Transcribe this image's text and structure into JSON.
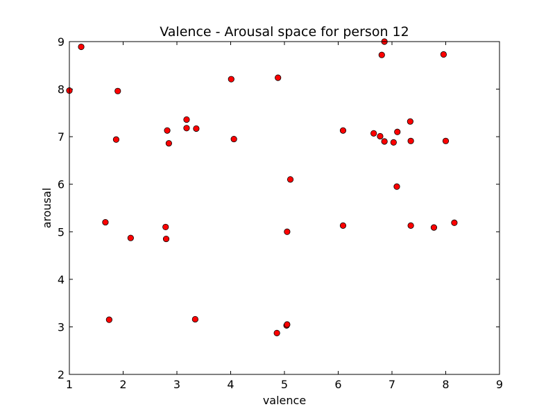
{
  "chart_data": {
    "type": "scatter",
    "title": "Valence - Arousal space for person 12",
    "xlabel": "valence",
    "ylabel": "arousal",
    "xlim": [
      1,
      9
    ],
    "ylim": [
      2,
      9
    ],
    "xticks": [
      "1",
      "2",
      "3",
      "4",
      "5",
      "6",
      "7",
      "8",
      "9"
    ],
    "yticks": [
      "2",
      "3",
      "4",
      "5",
      "6",
      "7",
      "8",
      "9"
    ],
    "grid": false,
    "marker_color": "#ff0000",
    "marker_edge_color": "#000000",
    "points": [
      {
        "x": 1.0,
        "y": 7.97
      },
      {
        "x": 1.22,
        "y": 8.89
      },
      {
        "x": 1.67,
        "y": 5.2
      },
      {
        "x": 1.74,
        "y": 3.15
      },
      {
        "x": 1.87,
        "y": 6.94
      },
      {
        "x": 1.9,
        "y": 7.96
      },
      {
        "x": 2.14,
        "y": 4.87
      },
      {
        "x": 2.79,
        "y": 5.1
      },
      {
        "x": 2.8,
        "y": 4.85
      },
      {
        "x": 2.82,
        "y": 7.13
      },
      {
        "x": 2.85,
        "y": 6.86
      },
      {
        "x": 3.18,
        "y": 7.36
      },
      {
        "x": 3.18,
        "y": 7.18
      },
      {
        "x": 3.34,
        "y": 3.16
      },
      {
        "x": 3.36,
        "y": 7.17
      },
      {
        "x": 4.01,
        "y": 8.21
      },
      {
        "x": 4.06,
        "y": 6.95
      },
      {
        "x": 4.86,
        "y": 2.87
      },
      {
        "x": 4.88,
        "y": 8.24
      },
      {
        "x": 5.04,
        "y": 3.03
      },
      {
        "x": 5.05,
        "y": 3.05
      },
      {
        "x": 5.05,
        "y": 5.0
      },
      {
        "x": 5.11,
        "y": 6.1
      },
      {
        "x": 6.09,
        "y": 7.13
      },
      {
        "x": 6.09,
        "y": 5.13
      },
      {
        "x": 6.66,
        "y": 7.07
      },
      {
        "x": 6.78,
        "y": 7.01
      },
      {
        "x": 6.81,
        "y": 8.72
      },
      {
        "x": 6.86,
        "y": 9.0
      },
      {
        "x": 6.86,
        "y": 6.9
      },
      {
        "x": 7.03,
        "y": 6.88
      },
      {
        "x": 7.09,
        "y": 5.95
      },
      {
        "x": 7.1,
        "y": 7.1
      },
      {
        "x": 7.34,
        "y": 7.32
      },
      {
        "x": 7.35,
        "y": 6.91
      },
      {
        "x": 7.35,
        "y": 5.13
      },
      {
        "x": 7.78,
        "y": 5.09
      },
      {
        "x": 7.96,
        "y": 8.73
      },
      {
        "x": 8.0,
        "y": 6.91
      },
      {
        "x": 8.16,
        "y": 5.19
      }
    ]
  }
}
